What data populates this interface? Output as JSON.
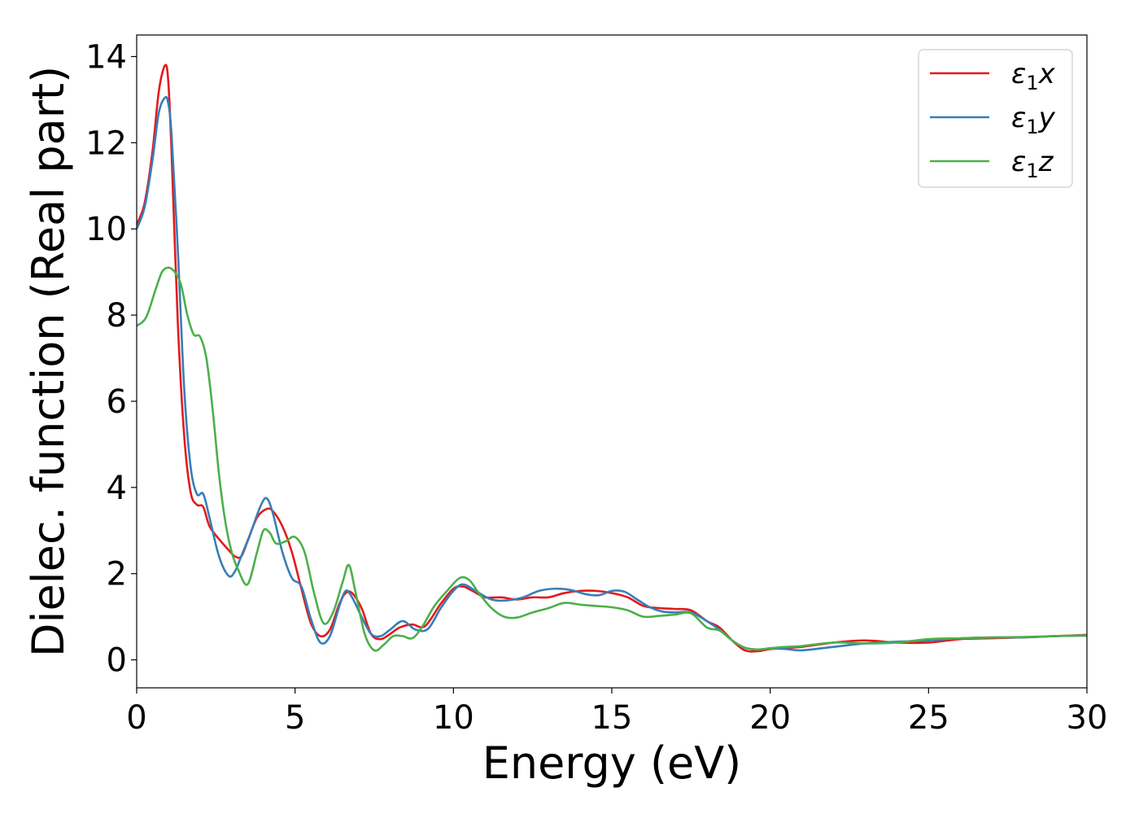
{
  "chart_data": {
    "type": "line",
    "xlabel": "Energy (eV)",
    "ylabel": "Dielec. function (Real part)",
    "xlim": [
      0,
      30
    ],
    "ylim": [
      -0.65,
      14.5
    ],
    "xticks": [
      0,
      5,
      10,
      15,
      20,
      25,
      30
    ],
    "yticks": [
      0,
      2,
      4,
      6,
      8,
      10,
      12,
      14
    ],
    "grid": false,
    "legend_position": "top-right",
    "series": [
      {
        "name": "ε1x",
        "legend": {
          "base": "ε",
          "sub": "1",
          "var": "x"
        },
        "color": "#e41a1c",
        "x": [
          0,
          0.25,
          0.5,
          0.7,
          0.9,
          1.0,
          1.1,
          1.3,
          1.5,
          1.7,
          1.9,
          2.1,
          2.3,
          2.6,
          2.9,
          3.1,
          3.3,
          3.5,
          3.8,
          4.1,
          4.3,
          4.6,
          4.9,
          5.2,
          5.5,
          5.8,
          6.1,
          6.4,
          6.6,
          6.8,
          7.1,
          7.4,
          7.7,
          8.0,
          8.3,
          8.7,
          9.1,
          9.6,
          10.0,
          10.3,
          10.6,
          11.0,
          11.5,
          12.0,
          12.5,
          13.0,
          13.5,
          14.0,
          14.5,
          15.0,
          15.5,
          16.0,
          16.5,
          17.0,
          17.5,
          18.0,
          18.4,
          18.8,
          19.2,
          19.6,
          20.0,
          20.5,
          21.0,
          22.0,
          23.0,
          24.0,
          25.0,
          26.0,
          27.0,
          28.0,
          29.0,
          30.0
        ],
        "y": [
          10.1,
          10.6,
          11.8,
          13.2,
          13.8,
          13.4,
          11.8,
          7.8,
          5.2,
          3.9,
          3.6,
          3.55,
          3.1,
          2.8,
          2.55,
          2.4,
          2.4,
          2.75,
          3.3,
          3.5,
          3.45,
          3.1,
          2.5,
          1.65,
          0.85,
          0.55,
          0.7,
          1.3,
          1.55,
          1.55,
          1.2,
          0.6,
          0.48,
          0.6,
          0.75,
          0.82,
          0.78,
          1.3,
          1.65,
          1.7,
          1.6,
          1.45,
          1.45,
          1.4,
          1.45,
          1.45,
          1.55,
          1.6,
          1.6,
          1.55,
          1.45,
          1.25,
          1.2,
          1.18,
          1.15,
          0.9,
          0.75,
          0.45,
          0.22,
          0.2,
          0.25,
          0.28,
          0.3,
          0.4,
          0.45,
          0.4,
          0.4,
          0.48,
          0.5,
          0.52,
          0.55,
          0.58
        ]
      },
      {
        "name": "ε1y",
        "legend": {
          "base": "ε",
          "sub": "1",
          "var": "y"
        },
        "color": "#377eb8",
        "x": [
          0,
          0.25,
          0.5,
          0.7,
          0.9,
          1.0,
          1.1,
          1.3,
          1.5,
          1.7,
          1.9,
          2.1,
          2.3,
          2.6,
          2.9,
          3.1,
          3.3,
          3.6,
          3.9,
          4.1,
          4.3,
          4.6,
          4.9,
          5.2,
          5.5,
          5.8,
          6.1,
          6.4,
          6.6,
          6.8,
          7.1,
          7.4,
          7.7,
          8.0,
          8.4,
          8.8,
          9.2,
          9.6,
          10.0,
          10.3,
          10.7,
          11.2,
          11.7,
          12.2,
          12.7,
          13.2,
          13.7,
          14.2,
          14.6,
          15.0,
          15.4,
          15.8,
          16.2,
          16.6,
          17.0,
          17.5,
          18.0,
          18.4,
          18.8,
          19.2,
          19.6,
          20.0,
          20.5,
          21.0,
          22.0,
          23.0,
          24.0,
          25.0,
          26.0,
          27.0,
          28.0,
          29.0,
          30.0
        ],
        "y": [
          10.0,
          10.5,
          11.6,
          12.7,
          13.05,
          12.9,
          12.2,
          9.5,
          6.3,
          4.5,
          3.85,
          3.85,
          3.3,
          2.4,
          1.95,
          2.05,
          2.4,
          2.95,
          3.55,
          3.75,
          3.4,
          2.5,
          1.9,
          1.7,
          0.95,
          0.4,
          0.55,
          1.25,
          1.6,
          1.45,
          1.0,
          0.6,
          0.55,
          0.7,
          0.9,
          0.7,
          0.72,
          1.2,
          1.6,
          1.75,
          1.6,
          1.4,
          1.38,
          1.45,
          1.6,
          1.65,
          1.62,
          1.52,
          1.5,
          1.6,
          1.58,
          1.4,
          1.22,
          1.12,
          1.1,
          1.1,
          0.9,
          0.7,
          0.45,
          0.28,
          0.24,
          0.26,
          0.25,
          0.22,
          0.3,
          0.38,
          0.42,
          0.45,
          0.5,
          0.52,
          0.52,
          0.55,
          0.56
        ]
      },
      {
        "name": "ε1z",
        "legend": {
          "base": "ε",
          "sub": "1",
          "var": "z"
        },
        "color": "#4daf4a",
        "x": [
          0,
          0.3,
          0.6,
          0.8,
          1.0,
          1.2,
          1.4,
          1.6,
          1.8,
          2.0,
          2.2,
          2.4,
          2.6,
          2.8,
          3.0,
          3.2,
          3.5,
          3.8,
          4.0,
          4.2,
          4.4,
          4.7,
          5.0,
          5.3,
          5.6,
          5.9,
          6.2,
          6.5,
          6.7,
          6.9,
          7.2,
          7.5,
          7.8,
          8.1,
          8.4,
          8.7,
          9.0,
          9.4,
          9.8,
          10.2,
          10.5,
          10.8,
          11.2,
          11.6,
          12.0,
          12.5,
          13.0,
          13.5,
          14.0,
          14.5,
          15.0,
          15.5,
          16.0,
          16.5,
          17.0,
          17.5,
          18.0,
          18.4,
          18.8,
          19.2,
          19.6,
          20.0,
          20.5,
          21.0,
          22.0,
          23.0,
          24.0,
          25.0,
          26.0,
          27.0,
          28.0,
          29.0,
          30.0
        ],
        "y": [
          7.75,
          7.95,
          8.6,
          9.0,
          9.1,
          9.0,
          8.7,
          8.0,
          7.55,
          7.5,
          7.0,
          5.8,
          4.3,
          3.2,
          2.5,
          2.1,
          1.75,
          2.5,
          3.0,
          2.95,
          2.7,
          2.75,
          2.85,
          2.5,
          1.55,
          0.85,
          1.1,
          1.8,
          2.2,
          1.6,
          0.6,
          0.22,
          0.35,
          0.55,
          0.55,
          0.5,
          0.75,
          1.25,
          1.6,
          1.9,
          1.85,
          1.55,
          1.2,
          1.0,
          0.98,
          1.1,
          1.2,
          1.32,
          1.28,
          1.25,
          1.22,
          1.15,
          1.0,
          1.02,
          1.05,
          1.08,
          0.75,
          0.68,
          0.45,
          0.28,
          0.24,
          0.27,
          0.3,
          0.32,
          0.4,
          0.38,
          0.4,
          0.48,
          0.5,
          0.52,
          0.53,
          0.55,
          0.57
        ]
      }
    ]
  }
}
